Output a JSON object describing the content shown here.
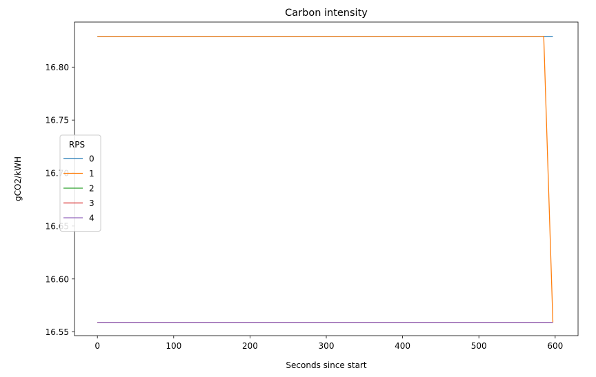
{
  "chart_data": {
    "type": "line",
    "title": "Carbon intensity",
    "xlabel": "Seconds since start",
    "ylabel": "gCO2/kWH",
    "xlim": [
      -30,
      630
    ],
    "ylim": [
      16.5465,
      16.8425
    ],
    "xticks": [
      0,
      100,
      200,
      300,
      400,
      500,
      600
    ],
    "xtick_labels": [
      "0",
      "100",
      "200",
      "300",
      "400",
      "500",
      "600"
    ],
    "yticks": [
      16.55,
      16.6,
      16.65,
      16.7,
      16.75,
      16.8
    ],
    "ytick_labels": [
      "16.55",
      "16.60",
      "16.65",
      "16.70",
      "16.75",
      "16.80"
    ],
    "grid": false,
    "legend": {
      "title": "RPS",
      "placement": "center-left"
    },
    "series": [
      {
        "name": "0",
        "color": "#1f77b4",
        "x": [
          0,
          100,
          200,
          300,
          400,
          500,
          585,
          597
        ],
        "y": [
          16.829,
          16.829,
          16.829,
          16.829,
          16.829,
          16.829,
          16.829,
          16.829
        ]
      },
      {
        "name": "1",
        "color": "#ff7f0e",
        "x": [
          0,
          100,
          200,
          300,
          400,
          500,
          585,
          597
        ],
        "y": [
          16.829,
          16.829,
          16.829,
          16.829,
          16.829,
          16.829,
          16.829,
          16.559
        ]
      },
      {
        "name": "2",
        "color": "#2ca02c",
        "x": [
          0,
          100,
          200,
          300,
          400,
          500,
          585,
          597
        ],
        "y": [
          16.559,
          16.559,
          16.559,
          16.559,
          16.559,
          16.559,
          16.559,
          16.559
        ]
      },
      {
        "name": "3",
        "color": "#d62728",
        "x": [
          0,
          100,
          200,
          300,
          400,
          500,
          585,
          597
        ],
        "y": [
          16.559,
          16.559,
          16.559,
          16.559,
          16.559,
          16.559,
          16.559,
          16.559
        ]
      },
      {
        "name": "4",
        "color": "#9467bd",
        "x": [
          0,
          100,
          200,
          300,
          400,
          500,
          585,
          597
        ],
        "y": [
          16.559,
          16.559,
          16.559,
          16.559,
          16.559,
          16.559,
          16.559,
          16.559
        ]
      }
    ]
  }
}
